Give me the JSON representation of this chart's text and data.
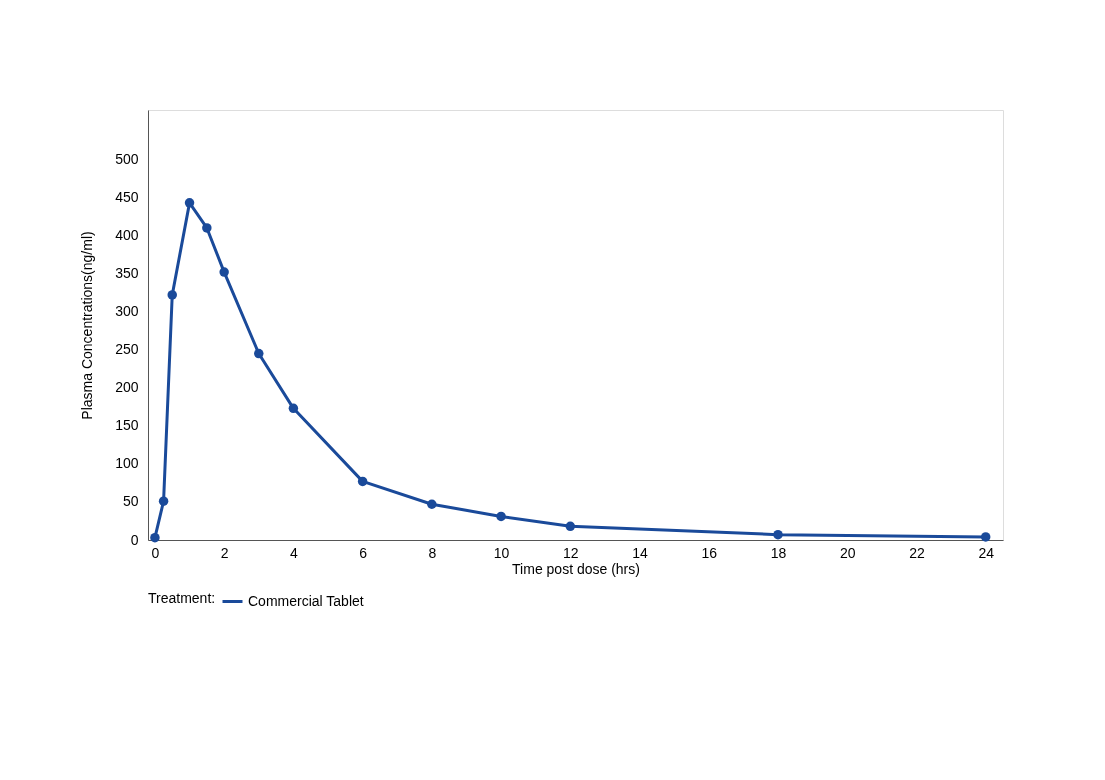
{
  "chart_data": {
    "type": "line",
    "xlabel": "Time post dose (hrs)",
    "ylabel": "Plasma Concentrations(ng/ml)",
    "legend_title": "Treatment:",
    "x": [
      0,
      0.25,
      0.5,
      1,
      1.5,
      2,
      3,
      4,
      6,
      8,
      10,
      12,
      18,
      24
    ],
    "series": [
      {
        "name": "Commercial Tablet",
        "color": "#1a4a9a",
        "values": [
          3,
          51,
          322,
          443,
          410,
          352,
          245,
          173,
          77,
          47,
          31,
          18,
          7,
          4
        ]
      }
    ],
    "xlim": [
      -0.2,
      24.5
    ],
    "xticks": [
      0,
      2,
      4,
      6,
      8,
      10,
      12,
      14,
      16,
      18,
      20,
      22,
      24
    ],
    "ylim": [
      0,
      565
    ],
    "yticks": [
      0,
      50,
      100,
      150,
      200,
      250,
      300,
      350,
      400,
      450,
      500
    ],
    "grid": false,
    "legend": "bottom",
    "marker": "circle",
    "line_style": "solid"
  }
}
